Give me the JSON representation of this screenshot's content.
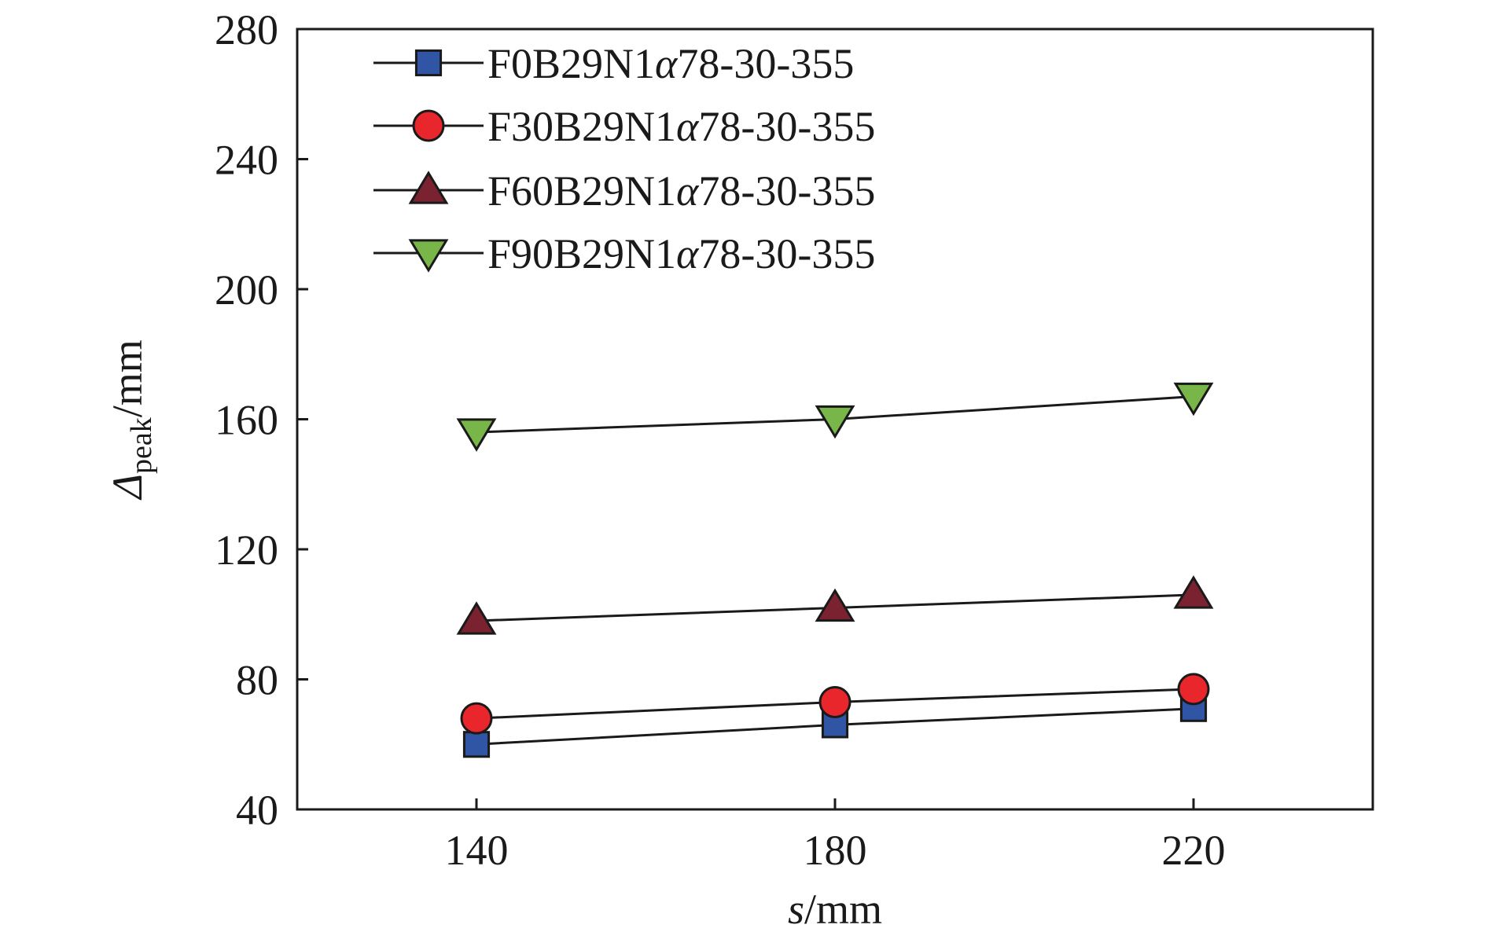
{
  "chart_data": {
    "type": "line",
    "x": [
      140,
      180,
      220
    ],
    "xlim": [
      120,
      240
    ],
    "ylim": [
      40,
      280
    ],
    "xticks": [
      140,
      180,
      220
    ],
    "yticks": [
      40,
      80,
      120,
      160,
      200,
      240,
      280
    ],
    "xlabel": {
      "var": "s",
      "unit": "/mm"
    },
    "ylabel": {
      "var": "Δ",
      "sub": "peak",
      "unit": "/mm"
    },
    "grid": false,
    "legend_position": "top-left",
    "series": [
      {
        "name": "F0B29N1α78-30-355",
        "name_parts": [
          "F0B29N1",
          "α",
          "78-30-355"
        ],
        "marker": "square",
        "color": "#2f55a4",
        "values": [
          60,
          66,
          71
        ]
      },
      {
        "name": "F30B29N1α78-30-355",
        "name_parts": [
          "F30B29N1",
          "α",
          "78-30-355"
        ],
        "marker": "circle",
        "color": "#e8262b",
        "values": [
          68,
          73,
          77
        ]
      },
      {
        "name": "F60B29N1α78-30-355",
        "name_parts": [
          "F60B29N1",
          "α",
          "78-30-355"
        ],
        "marker": "triangle-up",
        "color": "#7a2230",
        "values": [
          98,
          102,
          106
        ]
      },
      {
        "name": "F90B29N1α78-30-355",
        "name_parts": [
          "F90B29N1",
          "α",
          "78-30-355"
        ],
        "marker": "triangle-down",
        "color": "#79b64a",
        "values": [
          156,
          160,
          167
        ]
      }
    ]
  }
}
